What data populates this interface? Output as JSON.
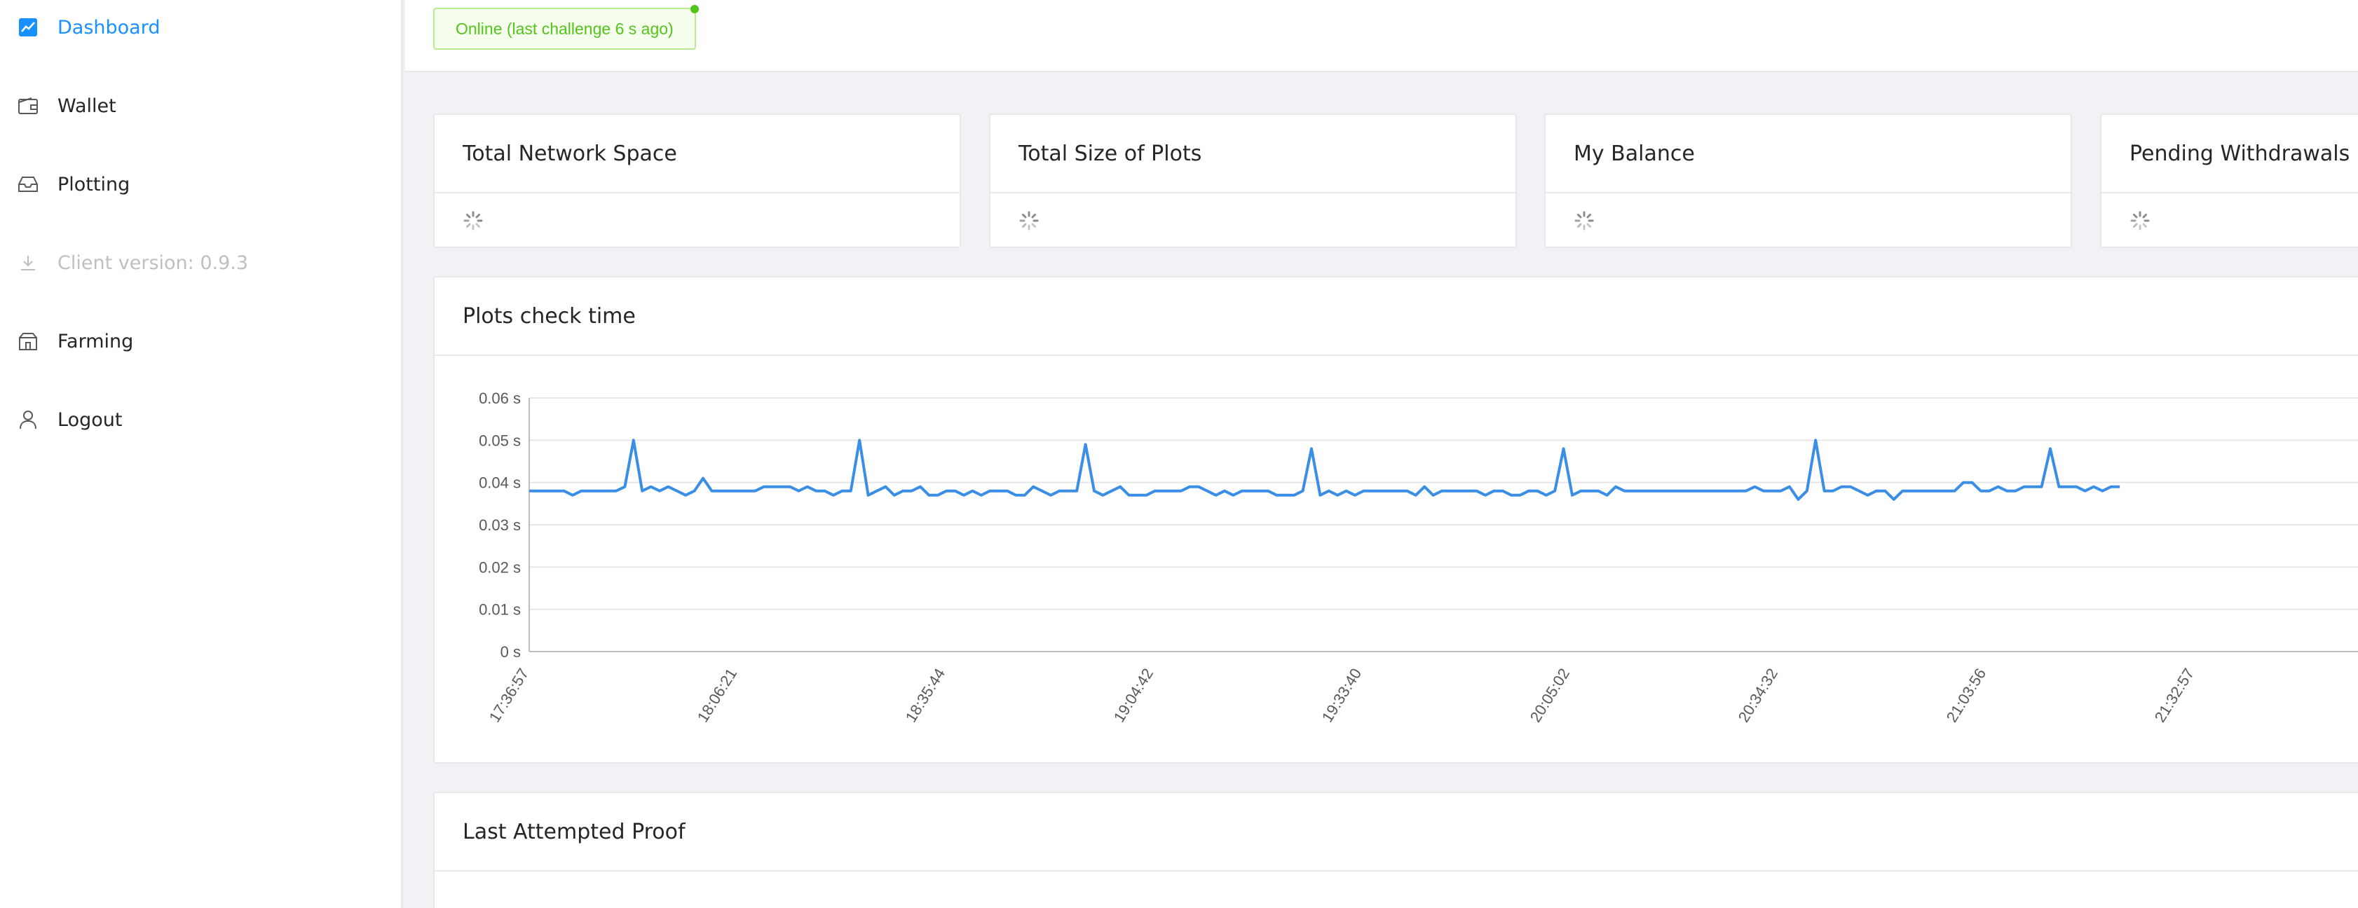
{
  "sidebar": {
    "items": [
      {
        "label": "Dashboard",
        "icon": "dashboard-icon",
        "state": "active"
      },
      {
        "label": "Wallet",
        "icon": "wallet-icon",
        "state": "normal"
      },
      {
        "label": "Plotting",
        "icon": "plotting-icon",
        "state": "normal"
      },
      {
        "label": "Client version: 0.9.3",
        "icon": "download-icon",
        "state": "disabled"
      },
      {
        "label": "Farming",
        "icon": "farming-icon",
        "state": "normal"
      },
      {
        "label": "Logout",
        "icon": "user-icon",
        "state": "normal"
      }
    ]
  },
  "header": {
    "status": "Online (last challenge 6 s ago)",
    "status_color": "#52c41a"
  },
  "stats": [
    {
      "title": "Total Network Space"
    },
    {
      "title": "Total Size of Plots"
    },
    {
      "title": "My Balance"
    },
    {
      "title": "Pending Withdrawals"
    }
  ],
  "plots_card": {
    "title": "Plots check time"
  },
  "proof_card": {
    "title": "Last Attempted Proof"
  },
  "colors": {
    "accent": "#1890ff",
    "line": "#3a8ee6"
  },
  "chart_data": {
    "type": "line",
    "title": "Plots check time",
    "y_ticks": [
      "0.06 s",
      "0.05 s",
      "0.04 s",
      "0.03 s",
      "0.02 s",
      "0.01 s",
      "0 s"
    ],
    "ylim": [
      0,
      0.06
    ],
    "x_ticks": [
      "17:36:57",
      "18:06:21",
      "18:35:44",
      "19:04:42",
      "19:33:40",
      "20:05:02",
      "20:34:32",
      "21:03:56",
      "21:32:57"
    ],
    "grid": true,
    "series": [
      {
        "values": [
          0.038,
          0.038,
          0.038,
          0.038,
          0.038,
          0.037,
          0.038,
          0.038,
          0.038,
          0.038,
          0.038,
          0.039,
          0.05,
          0.038,
          0.039,
          0.038,
          0.039,
          0.038,
          0.037,
          0.038,
          0.041,
          0.038,
          0.038,
          0.038,
          0.038,
          0.038,
          0.038,
          0.039,
          0.039,
          0.039,
          0.039,
          0.038,
          0.039,
          0.038,
          0.038,
          0.037,
          0.038,
          0.038,
          0.05,
          0.037,
          0.038,
          0.039,
          0.037,
          0.038,
          0.038,
          0.039,
          0.037,
          0.037,
          0.038,
          0.038,
          0.037,
          0.038,
          0.037,
          0.038,
          0.038,
          0.038,
          0.037,
          0.037,
          0.039,
          0.038,
          0.037,
          0.038,
          0.038,
          0.038,
          0.049,
          0.038,
          0.037,
          0.038,
          0.039,
          0.037,
          0.037,
          0.037,
          0.038,
          0.038,
          0.038,
          0.038,
          0.039,
          0.039,
          0.038,
          0.037,
          0.038,
          0.037,
          0.038,
          0.038,
          0.038,
          0.038,
          0.037,
          0.037,
          0.037,
          0.038,
          0.048,
          0.037,
          0.038,
          0.037,
          0.038,
          0.037,
          0.038,
          0.038,
          0.038,
          0.038,
          0.038,
          0.038,
          0.037,
          0.039,
          0.037,
          0.038,
          0.038,
          0.038,
          0.038,
          0.038,
          0.037,
          0.038,
          0.038,
          0.037,
          0.037,
          0.038,
          0.038,
          0.037,
          0.038,
          0.048,
          0.037,
          0.038,
          0.038,
          0.038,
          0.037,
          0.039,
          0.038,
          0.038,
          0.038,
          0.038,
          0.038,
          0.038,
          0.038,
          0.038,
          0.038,
          0.038,
          0.038,
          0.038,
          0.038,
          0.038,
          0.038,
          0.039,
          0.038,
          0.038,
          0.038,
          0.039,
          0.036,
          0.038,
          0.05,
          0.038,
          0.038,
          0.039,
          0.039,
          0.038,
          0.037,
          0.038,
          0.038,
          0.036,
          0.038,
          0.038,
          0.038,
          0.038,
          0.038,
          0.038,
          0.038,
          0.04,
          0.04,
          0.038,
          0.038,
          0.039,
          0.038,
          0.038,
          0.039,
          0.039,
          0.039,
          0.048,
          0.039,
          0.039,
          0.039,
          0.038,
          0.039,
          0.038,
          0.039,
          0.039
        ]
      }
    ]
  }
}
